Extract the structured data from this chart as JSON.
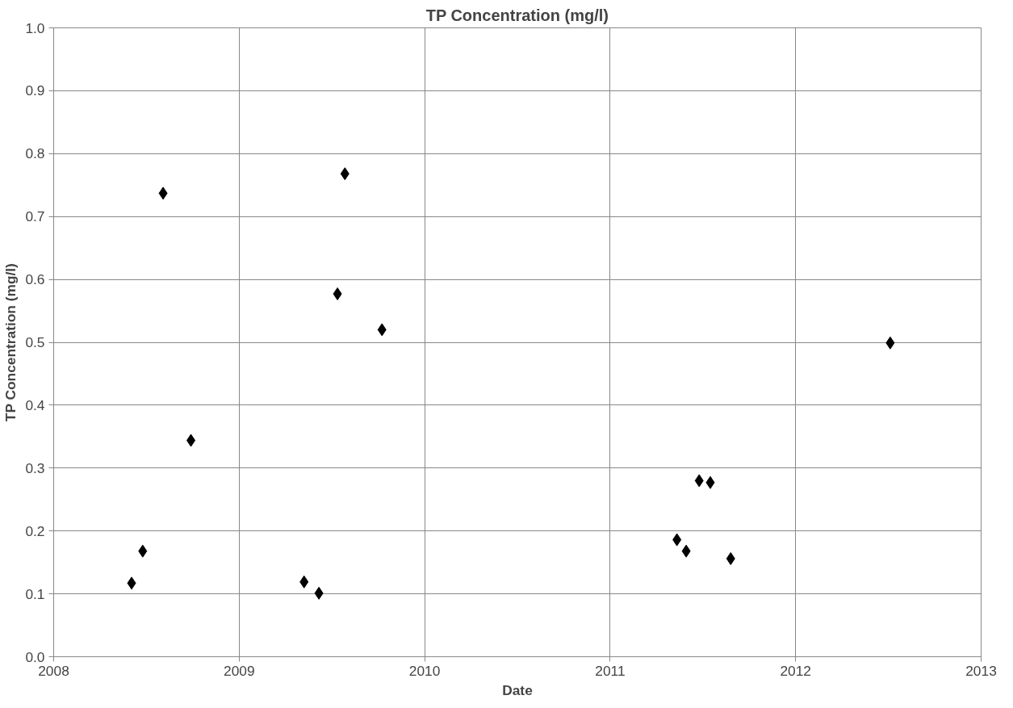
{
  "chart_data": {
    "type": "scatter",
    "title": "TP Concentration (mg/l)",
    "xlabel": "Date",
    "ylabel": "TP Concentration (mg/l)",
    "x": [
      2008.42,
      2008.48,
      2008.59,
      2008.74,
      2009.35,
      2009.43,
      2009.53,
      2009.57,
      2009.77,
      2011.36,
      2011.41,
      2011.48,
      2011.54,
      2011.65,
      2012.51
    ],
    "series": [
      {
        "color": "#000000",
        "values": [
          0.117,
          0.168,
          0.737,
          0.344,
          0.119,
          0.101,
          0.577,
          0.768,
          0.52,
          0.186,
          0.168,
          0.28,
          0.277,
          0.156,
          0.499
        ]
      }
    ],
    "xlim": [
      2008,
      2013
    ],
    "xticks": [
      2008,
      2009,
      2010,
      2011,
      2012,
      2013
    ],
    "ylim": [
      0,
      1
    ],
    "yticks": [
      {
        "value": 0,
        "label": "0.0"
      },
      {
        "value": 0.1,
        "label": "0.1"
      },
      {
        "value": 0.2,
        "label": "0.2"
      },
      {
        "value": 0.3,
        "label": "0.3"
      },
      {
        "value": 0.4,
        "label": "0.4"
      },
      {
        "value": 0.5,
        "label": "0.5"
      },
      {
        "value": 0.6,
        "label": "0.6"
      },
      {
        "value": 0.7,
        "label": "0.7"
      },
      {
        "value": 0.8,
        "label": "0.8"
      },
      {
        "value": 0.9,
        "label": "0.9"
      },
      {
        "value": 1,
        "label": "1.0"
      }
    ],
    "grid": true,
    "marker": "diamond"
  }
}
